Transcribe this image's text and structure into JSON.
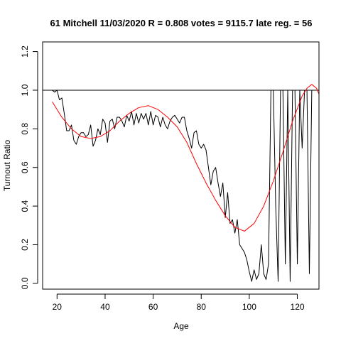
{
  "chart_data": {
    "type": "line",
    "title": "61 Mitchell 11/03/2020 R = 0.808 votes = 9115.7 late reg. = 56",
    "xlabel": "Age",
    "ylabel": "Turnout Ratio",
    "xlim": [
      14,
      129
    ],
    "ylim": [
      -0.03,
      1.25
    ],
    "xticks": [
      20,
      40,
      60,
      80,
      100,
      120
    ],
    "yticks": [
      0.0,
      0.2,
      0.4,
      0.6,
      0.8,
      1.0,
      1.2
    ],
    "grid": false,
    "reference_line": {
      "y": 1.0,
      "color": "#000000"
    },
    "series": [
      {
        "color": "#000000",
        "style": "observed",
        "x": [
          18,
          19,
          20,
          21,
          22,
          23,
          24,
          25,
          26,
          27,
          28,
          29,
          30,
          31,
          32,
          33,
          34,
          35,
          36,
          37,
          38,
          39,
          40,
          41,
          42,
          43,
          44,
          45,
          46,
          47,
          48,
          49,
          50,
          51,
          52,
          53,
          54,
          55,
          56,
          57,
          58,
          59,
          60,
          61,
          62,
          63,
          64,
          65,
          66,
          67,
          68,
          69,
          70,
          71,
          72,
          73,
          74,
          75,
          76,
          77,
          78,
          79,
          80,
          81,
          82,
          83,
          84,
          85,
          86,
          87,
          88,
          89,
          90,
          91,
          92,
          93,
          94,
          95,
          96,
          97,
          98,
          99,
          100,
          101,
          102,
          103,
          104,
          105,
          106,
          107,
          108,
          109,
          110,
          111,
          112,
          113,
          114,
          115,
          116,
          117,
          118,
          119,
          120,
          121,
          122,
          123,
          124,
          125,
          126,
          127,
          128,
          129
        ],
        "y": [
          1.0,
          0.99,
          1.0,
          0.95,
          0.96,
          0.88,
          0.79,
          0.79,
          0.82,
          0.74,
          0.72,
          0.76,
          0.78,
          0.78,
          0.76,
          0.77,
          0.82,
          0.71,
          0.74,
          0.8,
          0.77,
          0.85,
          0.83,
          0.73,
          0.84,
          0.85,
          0.8,
          0.86,
          0.86,
          0.84,
          0.81,
          0.87,
          0.84,
          0.89,
          0.82,
          0.88,
          0.83,
          0.88,
          0.85,
          0.88,
          0.82,
          0.89,
          0.82,
          0.87,
          0.86,
          0.81,
          0.86,
          0.82,
          0.8,
          0.84,
          0.86,
          0.87,
          0.85,
          0.83,
          0.86,
          0.86,
          0.79,
          0.75,
          0.7,
          0.78,
          0.79,
          0.72,
          0.7,
          0.72,
          0.69,
          0.6,
          0.51,
          0.58,
          0.6,
          0.52,
          0.45,
          0.52,
          0.34,
          0.47,
          0.31,
          0.33,
          0.26,
          0.33,
          0.2,
          0.18,
          0.16,
          0.12,
          0.06,
          0.01,
          0.07,
          0.02,
          0.05,
          0.2,
          0.05,
          0.02,
          0.1,
          1.0,
          1.0,
          0.4,
          0.01,
          1.0,
          1.0,
          0.1,
          1.0,
          0.01,
          1.0,
          1.0,
          0.1,
          1.0,
          0.7,
          1.0,
          1.0,
          0.05,
          1.0,
          1.0,
          1.0,
          1.0
        ]
      },
      {
        "color": "#ff0000",
        "style": "fitted",
        "x": [
          18,
          22,
          26,
          30,
          34,
          38,
          42,
          46,
          50,
          54,
          58,
          62,
          66,
          70,
          74,
          78,
          82,
          86,
          90,
          94,
          98,
          102,
          106,
          110,
          114,
          118,
          122,
          124,
          126,
          128,
          129
        ],
        "y": [
          0.94,
          0.86,
          0.8,
          0.76,
          0.75,
          0.76,
          0.79,
          0.84,
          0.88,
          0.91,
          0.92,
          0.9,
          0.86,
          0.81,
          0.73,
          0.62,
          0.52,
          0.43,
          0.35,
          0.29,
          0.27,
          0.31,
          0.4,
          0.53,
          0.68,
          0.84,
          0.97,
          1.01,
          1.03,
          1.01,
          0.98
        ]
      }
    ]
  }
}
